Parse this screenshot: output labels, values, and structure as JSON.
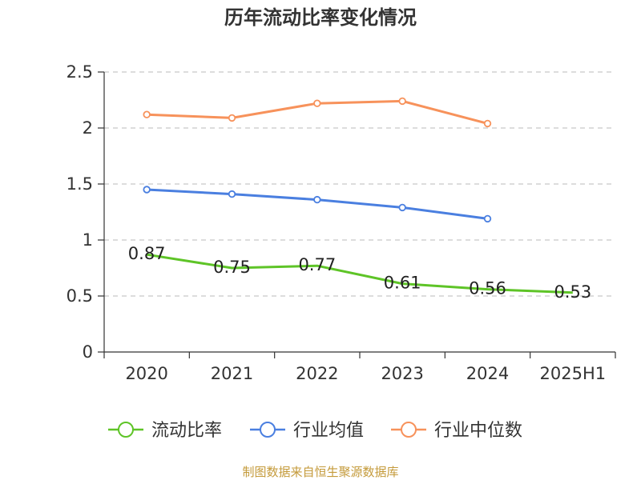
{
  "chart_data": {
    "type": "line",
    "title": "历年流动比率变化情况",
    "categories": [
      "2020",
      "2021",
      "2022",
      "2023",
      "2024",
      "2025H1"
    ],
    "ylim": [
      0,
      2.5
    ],
    "y_ticks": [
      "0",
      "0.5",
      "1",
      "1.5",
      "2",
      "2.5"
    ],
    "grid": true,
    "legend_position": "bottom",
    "series": [
      {
        "name": "流动比率",
        "color": "#5ec427",
        "values": [
          0.87,
          0.75,
          0.77,
          0.61,
          0.56,
          0.53
        ],
        "labels": [
          "0.87",
          "0.75",
          "0.77",
          "0.61",
          "0.56",
          "0.53"
        ]
      },
      {
        "name": "行业均值",
        "color": "#4a7fe0",
        "values": [
          1.45,
          1.41,
          1.36,
          1.29,
          1.19,
          null
        ]
      },
      {
        "name": "行业中位数",
        "color": "#f7925b",
        "values": [
          2.12,
          2.09,
          2.22,
          2.24,
          2.04,
          null
        ]
      }
    ],
    "source": "制图数据来自恒生聚源数据库"
  }
}
